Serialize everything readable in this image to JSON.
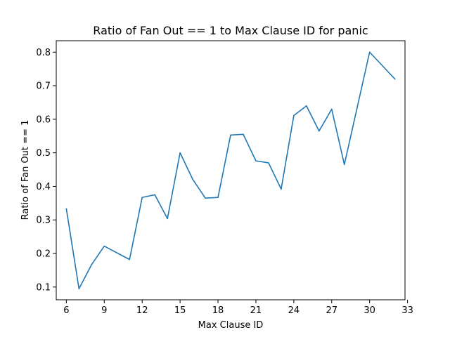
{
  "chart_data": {
    "type": "line",
    "title": "Ratio of Fan Out == 1 to Max Clause ID for panic",
    "xlabel": "Max Clause ID",
    "ylabel": "Ratio of Fan Out == 1",
    "xlim": [
      5.2,
      32.8
    ],
    "ylim": [
      0.062,
      0.834
    ],
    "xticks": [
      6,
      9,
      12,
      15,
      18,
      21,
      24,
      27,
      30,
      33
    ],
    "yticks": [
      0.1,
      0.2,
      0.3,
      0.4,
      0.5,
      0.6,
      0.7,
      0.8
    ],
    "grid": false,
    "series": [
      {
        "color": "#1f77b4",
        "x": [
          6,
          7,
          8,
          9,
          11,
          12,
          13,
          14,
          15,
          16,
          17,
          18,
          19,
          20,
          21,
          22,
          23,
          24,
          25,
          26,
          27,
          28,
          30,
          32
        ],
        "y": [
          0.333,
          0.095,
          0.167,
          0.222,
          0.182,
          0.367,
          0.375,
          0.304,
          0.5,
          0.421,
          0.365,
          0.367,
          0.553,
          0.555,
          0.476,
          0.47,
          0.392,
          0.611,
          0.64,
          0.565,
          0.63,
          0.465,
          0.8,
          0.72
        ]
      }
    ]
  }
}
